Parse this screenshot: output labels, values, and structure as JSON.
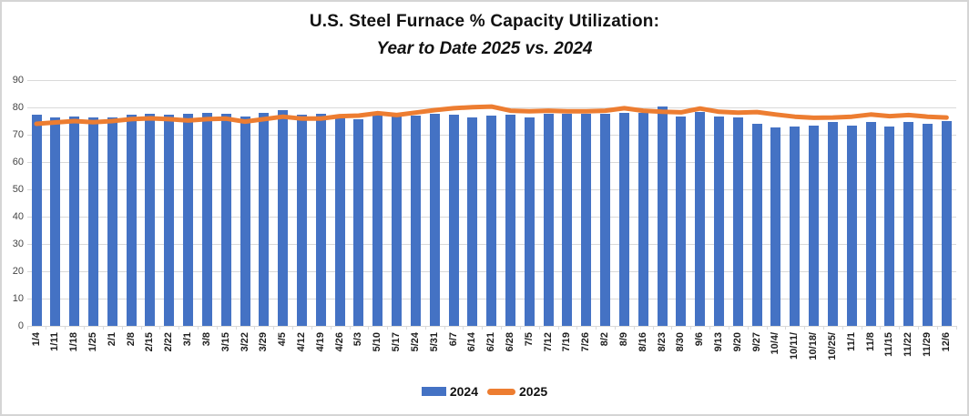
{
  "title": "U.S. Steel Furnace % Capacity Utilization:",
  "subtitle": "Year to Date 2025 vs. 2024",
  "colors": {
    "bar": "#4472C4",
    "line": "#ED7D31",
    "grid": "#D9D9D9",
    "axis_text": "#444444",
    "title_text": "#111111"
  },
  "y_axis": {
    "ticks": [
      0,
      10,
      20,
      30,
      40,
      50,
      60,
      70,
      80,
      90
    ]
  },
  "legend": {
    "items": [
      "2024",
      "2025"
    ],
    "position": "bottom"
  },
  "chart_data": {
    "type": "bar",
    "title": "U.S. Steel Furnace % Capacity Utilization: Year to Date 2025 vs. 2024",
    "xlabel": "",
    "ylabel": "",
    "ylim": [
      0,
      90
    ],
    "grid": true,
    "legend_position": "bottom",
    "categories": [
      "1/4",
      "1/11",
      "1/18",
      "1/25",
      "2/1",
      "2/8",
      "2/15",
      "2/22",
      "3/1",
      "3/8",
      "3/15",
      "3/22",
      "3/29",
      "4/5",
      "4/12",
      "4/19",
      "4/26",
      "5/3",
      "5/10",
      "5/17",
      "5/24",
      "5/31",
      "6/7",
      "6/14",
      "6/21",
      "6/28",
      "7/5",
      "7/12",
      "7/19",
      "7/26",
      "8/2",
      "8/9",
      "8/16",
      "8/23",
      "8/30",
      "9/6",
      "9/13",
      "9/20",
      "9/27",
      "10/4/",
      "10/11/",
      "10/18/",
      "10/25/",
      "11/1",
      "11/8",
      "11/15",
      "11/22",
      "11/29",
      "12/6"
    ],
    "series": [
      {
        "name": "2024",
        "type": "bar",
        "color": "#4472C4",
        "values": [
          77.3,
          76.3,
          76.7,
          76.3,
          76.5,
          77.2,
          77.8,
          77.3,
          77.8,
          78.1,
          77.6,
          76.7,
          78.0,
          78.9,
          77.3,
          77.7,
          76.8,
          75.7,
          77.3,
          77.6,
          77.0,
          77.6,
          77.3,
          76.3,
          77.0,
          77.3,
          76.3,
          77.8,
          77.6,
          77.6,
          77.6,
          78.1,
          78.1,
          80.2,
          76.7,
          78.4,
          76.7,
          76.3,
          73.9,
          72.6,
          73.1,
          73.5,
          74.8,
          73.3,
          74.6,
          73.1,
          74.8,
          73.9,
          75.0
        ]
      },
      {
        "name": "2025",
        "type": "line",
        "color": "#ED7D31",
        "values": [
          74.0,
          74.5,
          75.0,
          74.6,
          75.0,
          75.7,
          76.0,
          75.7,
          75.2,
          75.7,
          75.9,
          74.8,
          75.7,
          76.6,
          75.9,
          75.9,
          76.8,
          77.0,
          77.9,
          77.2,
          78.1,
          79.0,
          79.7,
          80.1,
          80.3,
          78.8,
          78.6,
          78.8,
          78.6,
          78.6,
          78.8,
          79.7,
          78.8,
          78.4,
          78.2,
          79.6,
          78.4,
          78.1,
          78.3,
          77.4,
          76.6,
          76.2,
          76.3,
          76.6,
          77.4,
          76.8,
          77.2,
          76.6,
          76.3
        ]
      }
    ]
  }
}
